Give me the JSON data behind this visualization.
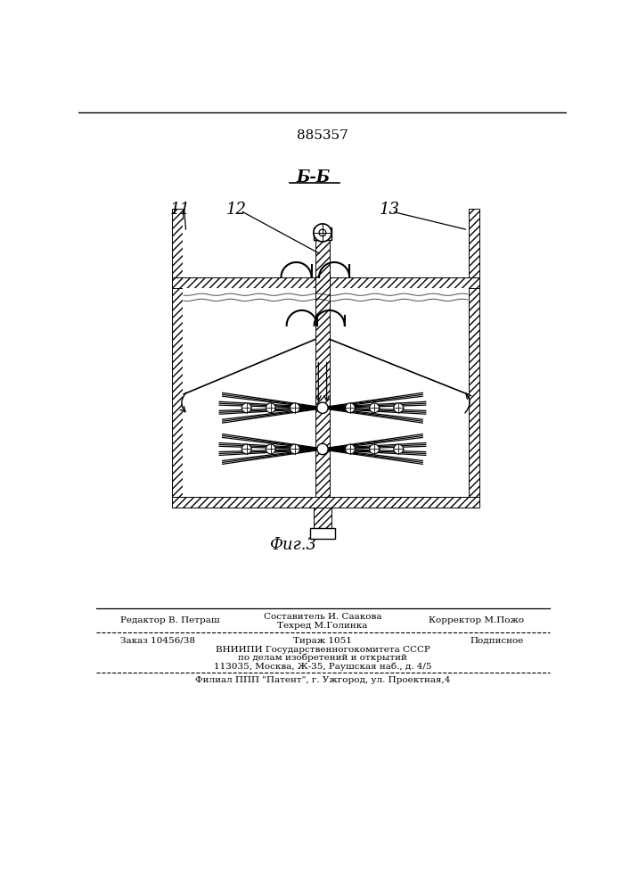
{
  "patent_number": "885357",
  "section_label": "Б-Б",
  "fig_label": "Фиг.3",
  "bg": "#f5f5f0",
  "lc": "#1a1a1a",
  "footer": {
    "editor": "Редактор В. Петраш",
    "compiler": "Составитель И. Саакова",
    "techred": "Техред М.Голинка",
    "corrector": "Корректор М.Пожо",
    "order": "Заказ 10456/38",
    "tirazh": "Тираж 1051",
    "podpisnoe": "Подписное",
    "vnipi1": "ВНИИПИ Государственногокомитета СССР",
    "vnipi2": "по делам изобретений и открытий",
    "vnipi3": "113035, Москва, Ж-35, Раушская наб., д. 4/5",
    "filial": "Филиал ППП \"Патент\", г. Ужгород, ул. Проектная,4"
  }
}
